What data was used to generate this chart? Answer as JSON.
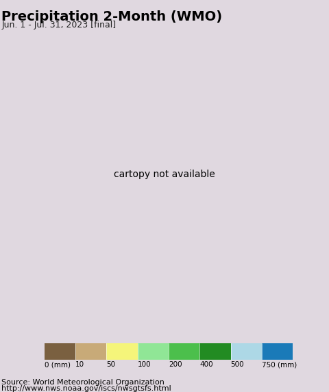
{
  "title": "Precipitation 2-Month (WMO)",
  "subtitle": "Jun. 1 - Jul. 31, 2023 [final]",
  "source_line1": "Source: World Meteorological Organization",
  "source_line2": "http://www.nws.noaa.gov/iscs/nwsgtsfs.html",
  "colorbar_labels": [
    "0 (mm)",
    "10",
    "50",
    "100",
    "200",
    "400",
    "500",
    "750 (mm)"
  ],
  "colorbar_colors": [
    "#7a6040",
    "#c8aa78",
    "#f5f57a",
    "#90e696",
    "#4cbf4c",
    "#228B22",
    "#add8e6",
    "#1a7ab8"
  ],
  "bg_color": "#e0d8e0",
  "ocean_color": "#b8ecf0",
  "map_extent": [
    57,
    102,
    4,
    41
  ],
  "title_fontsize": 14,
  "subtitle_fontsize": 9,
  "source_fontsize": 8,
  "fig_width": 4.8,
  "fig_height": 5.71,
  "dpi": 100
}
